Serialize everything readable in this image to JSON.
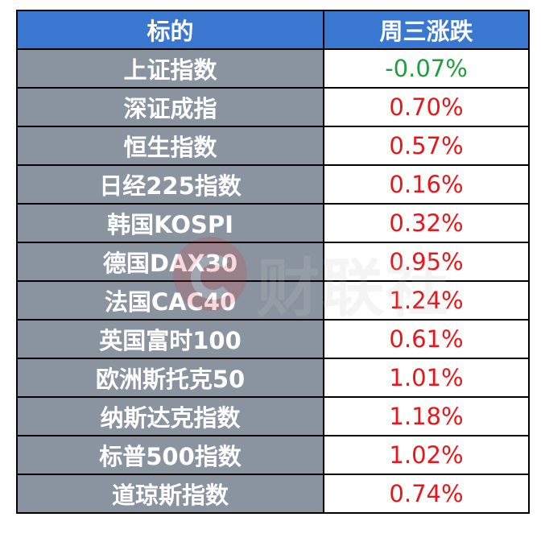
{
  "table": {
    "headers": [
      "标的",
      "周三涨跌"
    ],
    "rows": [
      {
        "name": "上证指数",
        "change": "-0.07%",
        "color": "#1E9E3E"
      },
      {
        "name": "深证成指",
        "change": "0.70%",
        "color": "#E8151B"
      },
      {
        "name": "恒生指数",
        "change": "0.57%",
        "color": "#E8151B"
      },
      {
        "name": "日经225指数",
        "change": "0.16%",
        "color": "#E8151B"
      },
      {
        "name": "韩国KOSPI",
        "change": "0.32%",
        "color": "#E8151B"
      },
      {
        "name": "德国DAX30",
        "change": "0.95%",
        "color": "#E8151B"
      },
      {
        "name": "法国CAC40",
        "change": "1.24%",
        "color": "#E8151B"
      },
      {
        "name": "英国富时100",
        "change": "0.61%",
        "color": "#E8151B"
      },
      {
        "name": "欧洲斯托克50",
        "change": "1.01%",
        "color": "#E8151B"
      },
      {
        "name": "纳斯达克指数",
        "change": "1.18%",
        "color": "#E8151B"
      },
      {
        "name": "标普500指数",
        "change": "1.02%",
        "color": "#E8151B"
      },
      {
        "name": "道琼斯指数",
        "change": "0.74%",
        "color": "#E8151B"
      }
    ]
  },
  "watermark": {
    "text": "财联社",
    "icon": "cailian-logo-icon"
  },
  "colors": {
    "header_bg": "#3A77D0",
    "name_bg": "#8A94A0",
    "up": "#E8151B",
    "down": "#1E9E3E"
  }
}
